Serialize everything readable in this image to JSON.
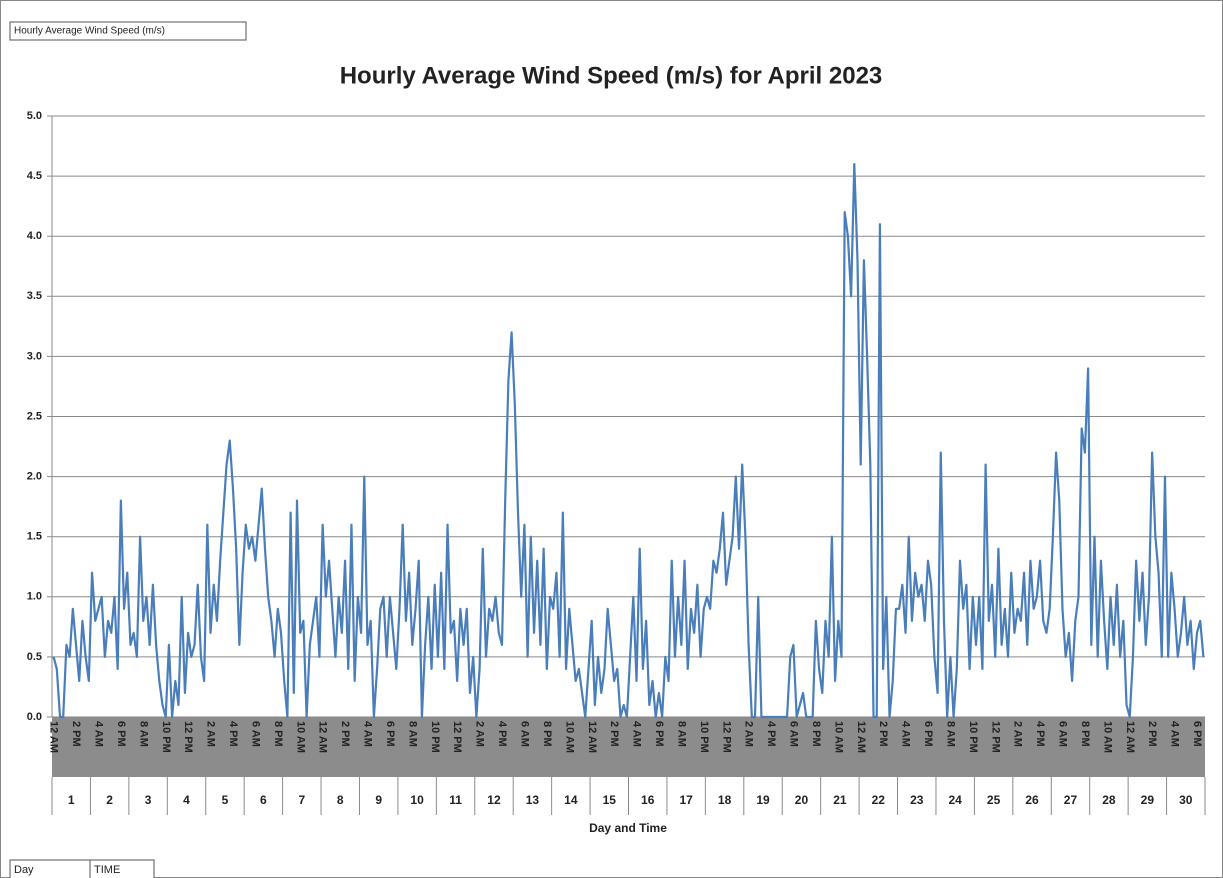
{
  "header_label": "Hourly Average Wind Speed (m/s)",
  "footer_labels": [
    "Day",
    "TIME"
  ],
  "chart_data": {
    "type": "line",
    "title": "Hourly Average Wind Speed (m/s) for April 2023",
    "x_label": "Day and Time",
    "days": [
      "1",
      "2",
      "3",
      "4",
      "5",
      "6",
      "7",
      "8",
      "9",
      "10",
      "11",
      "12",
      "13",
      "14",
      "15",
      "16",
      "17",
      "18",
      "19",
      "20",
      "21",
      "22",
      "23",
      "24",
      "25",
      "26",
      "27",
      "28",
      "29",
      "30"
    ],
    "categories": [
      "12 AM",
      null,
      null,
      null,
      null,
      null,
      null,
      "2 PM",
      null,
      null,
      null,
      null,
      null,
      null,
      "4 AM",
      null,
      null,
      null,
      null,
      null,
      null,
      "6 PM",
      null,
      null,
      null,
      null,
      null,
      null,
      "8 AM",
      null,
      null,
      null,
      null,
      null,
      null,
      "10 PM",
      null,
      null,
      null,
      null,
      null,
      null,
      "12 PM",
      null,
      null,
      null,
      null,
      null,
      null,
      "2 AM",
      null,
      null,
      null,
      null,
      null,
      null,
      "4 PM",
      null,
      null,
      null,
      null,
      null,
      null,
      "6 AM",
      null,
      null,
      null,
      null,
      null,
      null,
      "8 PM",
      null,
      null,
      null,
      null,
      null,
      null,
      "10 AM",
      null,
      null,
      null,
      null,
      null,
      null,
      "12 AM",
      null,
      null,
      null,
      null,
      null,
      null,
      "2 PM",
      null,
      null,
      null,
      null,
      null,
      null,
      "4 AM",
      null,
      null,
      null,
      null,
      null,
      null,
      "6 PM",
      null,
      null,
      null,
      null,
      null,
      null,
      "8 AM",
      null,
      null,
      null,
      null,
      null,
      null,
      "10 PM",
      null,
      null,
      null,
      null,
      null,
      null,
      "12 PM",
      null,
      null,
      null,
      null,
      null,
      null,
      "2 AM",
      null,
      null,
      null,
      null,
      null,
      null,
      "4 PM",
      null,
      null,
      null,
      null,
      null,
      null,
      "6 AM",
      null,
      null,
      null,
      null,
      null,
      null,
      "8 PM",
      null,
      null,
      null,
      null,
      null,
      null,
      "10 AM",
      null,
      null,
      null,
      null,
      null,
      null,
      "12 AM",
      null,
      null,
      null,
      null,
      null,
      null,
      "2 PM",
      null,
      null,
      null,
      null,
      null,
      null,
      "4 AM",
      null,
      null,
      null,
      null,
      null,
      null,
      "6 PM",
      null,
      null,
      null,
      null,
      null,
      null,
      "8 AM",
      null,
      null,
      null,
      null,
      null,
      null,
      "10 PM",
      null,
      null,
      null,
      null,
      null,
      null,
      "12 PM",
      null,
      null,
      null,
      null,
      null,
      null,
      "2 AM",
      null,
      null,
      null,
      null,
      null,
      null,
      "4 PM",
      null,
      null,
      null,
      null,
      null,
      null,
      "6 AM",
      null,
      null,
      null,
      null,
      null,
      null,
      "8 PM",
      null,
      null,
      null,
      null,
      null,
      null,
      "10 AM",
      null,
      null,
      null,
      null,
      null,
      null,
      "12 AM",
      null,
      null,
      null,
      null,
      null,
      null,
      "2 PM",
      null,
      null,
      null,
      null,
      null,
      null,
      "4 AM",
      null,
      null,
      null,
      null,
      null,
      null,
      "6 PM",
      null,
      null,
      null,
      null,
      null,
      null,
      "8 AM",
      null,
      null,
      null,
      null,
      null,
      null,
      "10 PM",
      null,
      null,
      null,
      null,
      null,
      null,
      "12 PM",
      null,
      null,
      null,
      null,
      null,
      null,
      "2 AM",
      null,
      null,
      null,
      null,
      null,
      null,
      "4 PM",
      null,
      null,
      null,
      null,
      null,
      null,
      "6 AM",
      null,
      null,
      null,
      null,
      null,
      null,
      "8 PM",
      null,
      null,
      null,
      null,
      null,
      null,
      "10 AM",
      null,
      null,
      null,
      null,
      null,
      null,
      "12 AM",
      null,
      null,
      null,
      null,
      null,
      null,
      "2 PM",
      null,
      null,
      null,
      null,
      null,
      null,
      "4 AM",
      null,
      null,
      null,
      null,
      null,
      null,
      "6 PM",
      null,
      null
    ],
    "values": [
      0.5,
      0.4,
      0,
      0,
      0.6,
      0.5,
      0.9,
      0.6,
      0.3,
      0.8,
      0.5,
      0.3,
      1.2,
      0.8,
      0.9,
      1.0,
      0.5,
      0.8,
      0.7,
      1.0,
      0.4,
      1.8,
      0.9,
      1.2,
      0.6,
      0.7,
      0.5,
      1.5,
      0.8,
      1.0,
      0.6,
      1.1,
      0.6,
      0.3,
      0.1,
      0,
      0.6,
      0,
      0.3,
      0.1,
      1.0,
      0.2,
      0.7,
      0.5,
      0.6,
      1.1,
      0.5,
      0.3,
      1.6,
      0.7,
      1.1,
      0.8,
      1.3,
      1.7,
      2.1,
      2.3,
      1.9,
      1.4,
      0.6,
      1.2,
      1.6,
      1.4,
      1.5,
      1.3,
      1.6,
      1.9,
      1.4,
      1.0,
      0.8,
      0.5,
      0.9,
      0.7,
      0.3,
      0,
      1.7,
      0.2,
      1.8,
      0.7,
      0.8,
      0,
      0.6,
      0.8,
      1.0,
      0.5,
      1.6,
      1.0,
      1.3,
      0.9,
      0.5,
      1.0,
      0.7,
      1.3,
      0.4,
      1.6,
      0.3,
      1.0,
      0.7,
      2.0,
      0.6,
      0.8,
      0,
      0.4,
      0.9,
      1.0,
      0.5,
      1.0,
      0.7,
      0.4,
      0.9,
      1.6,
      0.8,
      1.2,
      0.6,
      0.9,
      1.3,
      0,
      0.6,
      1.0,
      0.4,
      1.1,
      0.5,
      1.2,
      0.4,
      1.6,
      0.7,
      0.8,
      0.3,
      0.9,
      0.6,
      0.9,
      0.2,
      0.5,
      0,
      0.4,
      1.4,
      0.5,
      0.9,
      0.8,
      1.0,
      0.7,
      0.6,
      1.8,
      2.8,
      3.2,
      2.6,
      1.7,
      1.0,
      1.6,
      0.5,
      1.5,
      0.7,
      1.3,
      0.6,
      1.4,
      0.4,
      1.0,
      0.9,
      1.2,
      0.5,
      1.7,
      0.4,
      0.9,
      0.6,
      0.3,
      0.4,
      0.2,
      0,
      0.4,
      0.8,
      0.1,
      0.5,
      0.2,
      0.4,
      0.9,
      0.6,
      0.3,
      0.4,
      0,
      0.1,
      0,
      0.5,
      1.0,
      0.3,
      1.4,
      0.4,
      0.8,
      0.1,
      0.3,
      0,
      0.2,
      0,
      0.5,
      0.3,
      1.3,
      0.5,
      1.0,
      0.6,
      1.3,
      0.4,
      0.9,
      0.7,
      1.1,
      0.5,
      0.9,
      1.0,
      0.9,
      1.3,
      1.2,
      1.4,
      1.7,
      1.1,
      1.3,
      1.5,
      2.0,
      1.4,
      2.1,
      1.5,
      0.6,
      0,
      0,
      1.0,
      0,
      0,
      0,
      0,
      0,
      0,
      0,
      0,
      0,
      0.5,
      0.6,
      0,
      0.1,
      0.2,
      0,
      0,
      0,
      0.8,
      0.4,
      0.2,
      0.8,
      0.5,
      1.5,
      0.3,
      0.8,
      0.5,
      4.2,
      4.0,
      3.5,
      4.6,
      3.8,
      2.1,
      3.8,
      3.0,
      2.1,
      0,
      0,
      4.1,
      0.4,
      1.0,
      0,
      0.3,
      0.9,
      0.9,
      1.1,
      0.7,
      1.5,
      0.8,
      1.2,
      1.0,
      1.1,
      0.8,
      1.3,
      1.1,
      0.5,
      0.2,
      2.2,
      0.8,
      0,
      0.5,
      0,
      0.4,
      1.3,
      0.9,
      1.1,
      0.4,
      1.0,
      0.6,
      1.0,
      0.4,
      2.1,
      0.8,
      1.1,
      0.5,
      1.4,
      0.6,
      0.9,
      0.5,
      1.2,
      0.7,
      0.9,
      0.8,
      1.2,
      0.6,
      1.3,
      0.9,
      1.0,
      1.3,
      0.8,
      0.7,
      0.9,
      1.5,
      2.2,
      1.8,
      0.9,
      0.5,
      0.7,
      0.3,
      0.8,
      1.0,
      2.4,
      2.2,
      2.9,
      0.6,
      1.5,
      0.5,
      1.3,
      0.8,
      0.4,
      1.0,
      0.6,
      1.1,
      0.5,
      0.8,
      0.1,
      0,
      0.5,
      1.3,
      0.8,
      1.2,
      0.6,
      1.0,
      2.2,
      1.5,
      1.2,
      0.5,
      2.0,
      0.5,
      1.2,
      0.9,
      0.5,
      0.7,
      1.0,
      0.6,
      0.8,
      0.4,
      0.7,
      0.8,
      0.5
    ],
    "color": "#4a7ebb",
    "ylim": [
      0,
      5
    ],
    "yticks": [
      {
        "value": 0,
        "label": "0.0"
      },
      0.5,
      {
        "value": 1,
        "label": "1.0"
      },
      1.5,
      {
        "value": 2,
        "label": "2.0"
      },
      2.5,
      {
        "value": 3,
        "label": "3.0"
      },
      3.5,
      {
        "value": 4,
        "label": "4.0"
      },
      4.5,
      {
        "value": 5,
        "label": "5.0"
      }
    ],
    "grid": true
  }
}
